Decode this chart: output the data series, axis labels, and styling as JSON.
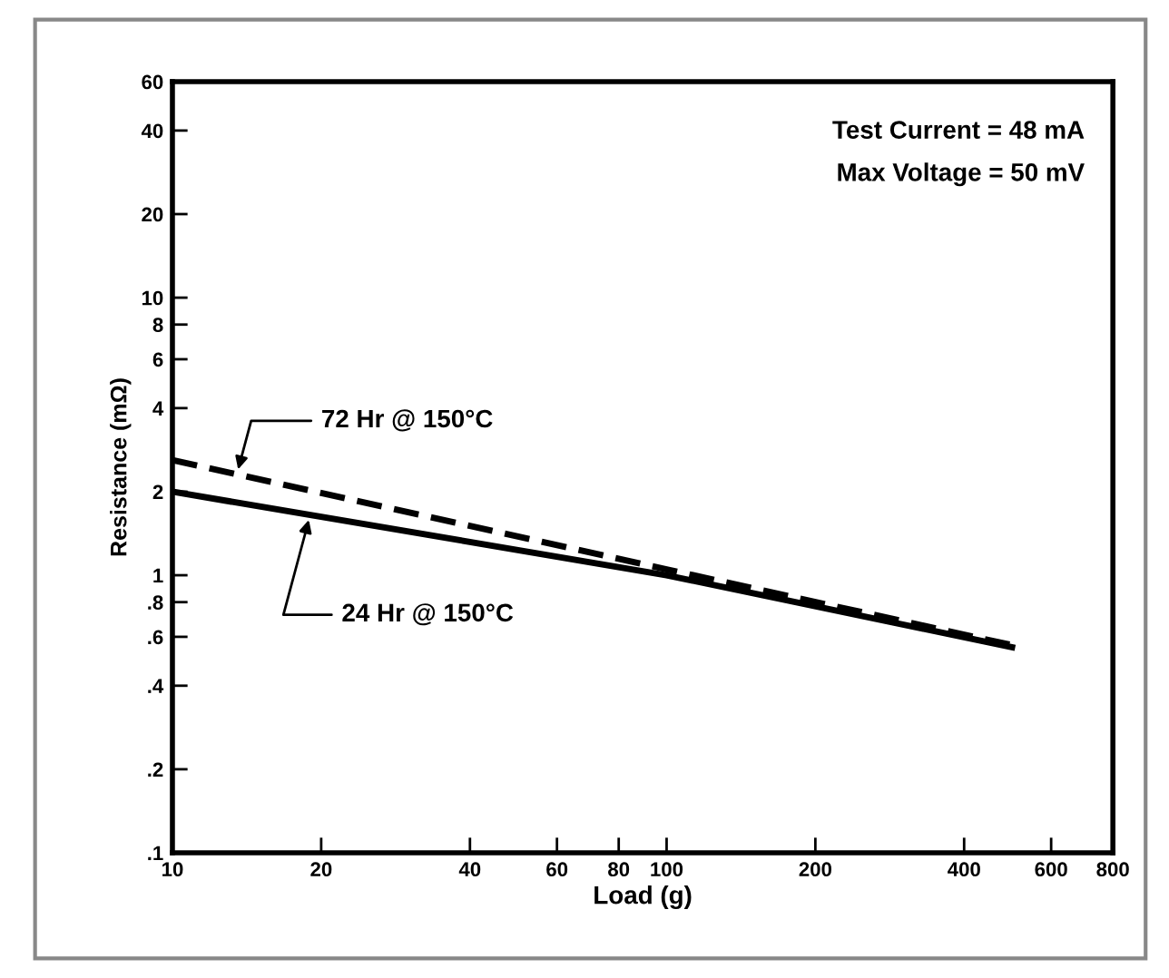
{
  "chart_data": {
    "type": "line",
    "xlabel": "Load (g)",
    "ylabel": "Resistance (mΩ)",
    "series": [
      {
        "name": "72 Hr @ 150°C",
        "color": "#000000",
        "line_style": "dashed",
        "x": [
          10,
          100,
          500
        ],
        "values": [
          2.6,
          1.05,
          0.56
        ]
      },
      {
        "name": "24 Hr @ 150°C",
        "color": "#000000",
        "line_style": "solid",
        "x": [
          10,
          100,
          500
        ],
        "values": [
          2.0,
          1.0,
          0.55
        ]
      }
    ],
    "log": "xy",
    "xlim": [
      10,
      800
    ],
    "ylim": [
      0.1,
      60
    ],
    "xticks": [
      10,
      20,
      40,
      60,
      80,
      100,
      200,
      400,
      600,
      800
    ],
    "yticks": [
      {
        "value": 0.1,
        "label": ".1"
      },
      {
        "value": 0.2,
        "label": ".2"
      },
      {
        "value": 0.4,
        "label": ".4"
      },
      {
        "value": 0.6,
        "label": ".6"
      },
      {
        "value": 0.8,
        "label": ".8"
      },
      1,
      2,
      4,
      6,
      8,
      10,
      20,
      40,
      60
    ],
    "annotations": [
      "Test Current = 48 mA",
      "Max Voltage = 50 mV"
    ],
    "marker": "none",
    "grid": false,
    "legend": false
  }
}
